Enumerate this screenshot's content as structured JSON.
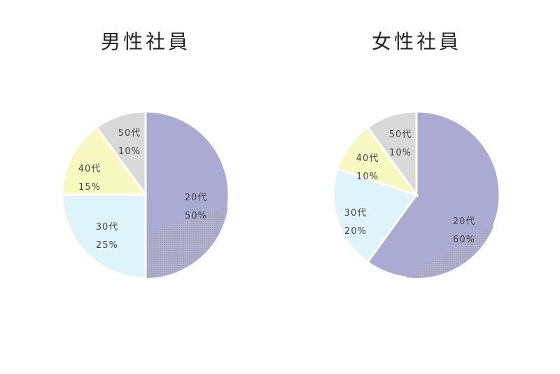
{
  "chart_data": [
    {
      "type": "pie",
      "title": "男性社員",
      "slices": [
        {
          "label": "20代",
          "value": 50,
          "value_label": "50%",
          "color": "#aaaad3",
          "hatched": true
        },
        {
          "label": "30代",
          "value": 25,
          "value_label": "25%",
          "color": "#dff3fb",
          "hatched": false
        },
        {
          "label": "40代",
          "value": 15,
          "value_label": "15%",
          "color": "#f7f8c0",
          "hatched": false
        },
        {
          "label": "50代",
          "value": 10,
          "value_label": "10%",
          "color": "#d9d9d9",
          "hatched": false
        }
      ]
    },
    {
      "type": "pie",
      "title": "女性社員",
      "slices": [
        {
          "label": "20代",
          "value": 60,
          "value_label": "60%",
          "color": "#aaaad3",
          "hatched": true
        },
        {
          "label": "30代",
          "value": 20,
          "value_label": "20%",
          "color": "#dff3fb",
          "hatched": false
        },
        {
          "label": "40代",
          "value": 10,
          "value_label": "10%",
          "color": "#f7f8c0",
          "hatched": false
        },
        {
          "label": "50代",
          "value": 10,
          "value_label": "10%",
          "color": "#d9d9d9",
          "hatched": false
        }
      ]
    }
  ],
  "colors": {
    "slice_border": "#ffffff",
    "label_text": "#444444",
    "hatch": "#9a9aa6"
  }
}
